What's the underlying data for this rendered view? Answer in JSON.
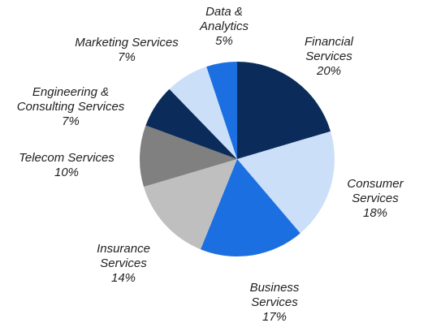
{
  "chart_data": {
    "type": "pie",
    "categories": [
      "Financial Services",
      "Consumer Services",
      "Business Services",
      "Insurance Services",
      "Telecom Services",
      "Engineering & Consulting Services",
      "Marketing Services",
      "Data & Analytics"
    ],
    "values": [
      20,
      18,
      17,
      14,
      10,
      7,
      7,
      5
    ],
    "value_labels": [
      "20%",
      "18%",
      "17%",
      "14%",
      "10%",
      "7%",
      "7%",
      "5%"
    ],
    "colors": [
      "#0b2c5a",
      "#cbe0f8",
      "#1c6fe0",
      "#bfbfbf",
      "#808080",
      "#0b2c5a",
      "#cbe0f8",
      "#1c6fe0"
    ]
  }
}
